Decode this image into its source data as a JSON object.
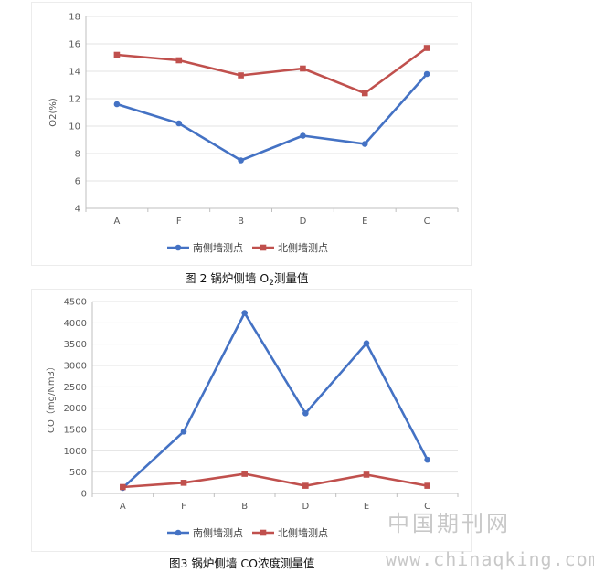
{
  "chart_data": [
    {
      "type": "line",
      "categories": [
        "A",
        "F",
        "B",
        "D",
        "E",
        "C"
      ],
      "series": [
        {
          "name": "南侧墙测点",
          "values": [
            11.6,
            10.2,
            7.5,
            9.3,
            8.7,
            13.8
          ],
          "color": "#4472c4",
          "marker": "circle"
        },
        {
          "name": "北侧墙测点",
          "values": [
            15.2,
            14.8,
            13.7,
            14.2,
            12.4,
            15.7
          ],
          "color": "#c0504d",
          "marker": "square"
        }
      ],
      "title": "",
      "xlabel": "",
      "ylabel": "O2(%)",
      "ylim": [
        4,
        18
      ],
      "yticks": [
        4,
        6,
        8,
        10,
        12,
        14,
        16,
        18
      ],
      "grid": true,
      "legend": "bottom"
    },
    {
      "type": "line",
      "categories": [
        "A",
        "F",
        "B",
        "D",
        "E",
        "C"
      ],
      "series": [
        {
          "name": "南侧墙测点",
          "values": [
            130,
            1450,
            4230,
            1880,
            3520,
            790
          ],
          "color": "#4472c4",
          "marker": "circle"
        },
        {
          "name": "北侧墙测点",
          "values": [
            150,
            250,
            460,
            180,
            440,
            180
          ],
          "color": "#c0504d",
          "marker": "square"
        }
      ],
      "title": "",
      "xlabel": "",
      "ylabel": "CO（mg/Nm3）",
      "ylim": [
        0,
        4500
      ],
      "yticks": [
        0,
        500,
        1000,
        1500,
        2000,
        2500,
        3000,
        3500,
        4000,
        4500
      ],
      "grid": true,
      "legend": "bottom"
    }
  ],
  "captions": {
    "fig2_prefix": "图 2  锅炉侧墙 O",
    "fig2_sub": "2",
    "fig2_suffix": "测量值",
    "fig3": "图3  锅炉侧墙 CO浓度测量值"
  },
  "watermark": {
    "cn": "中国期刊网",
    "url": "www.chinaqking.com"
  }
}
